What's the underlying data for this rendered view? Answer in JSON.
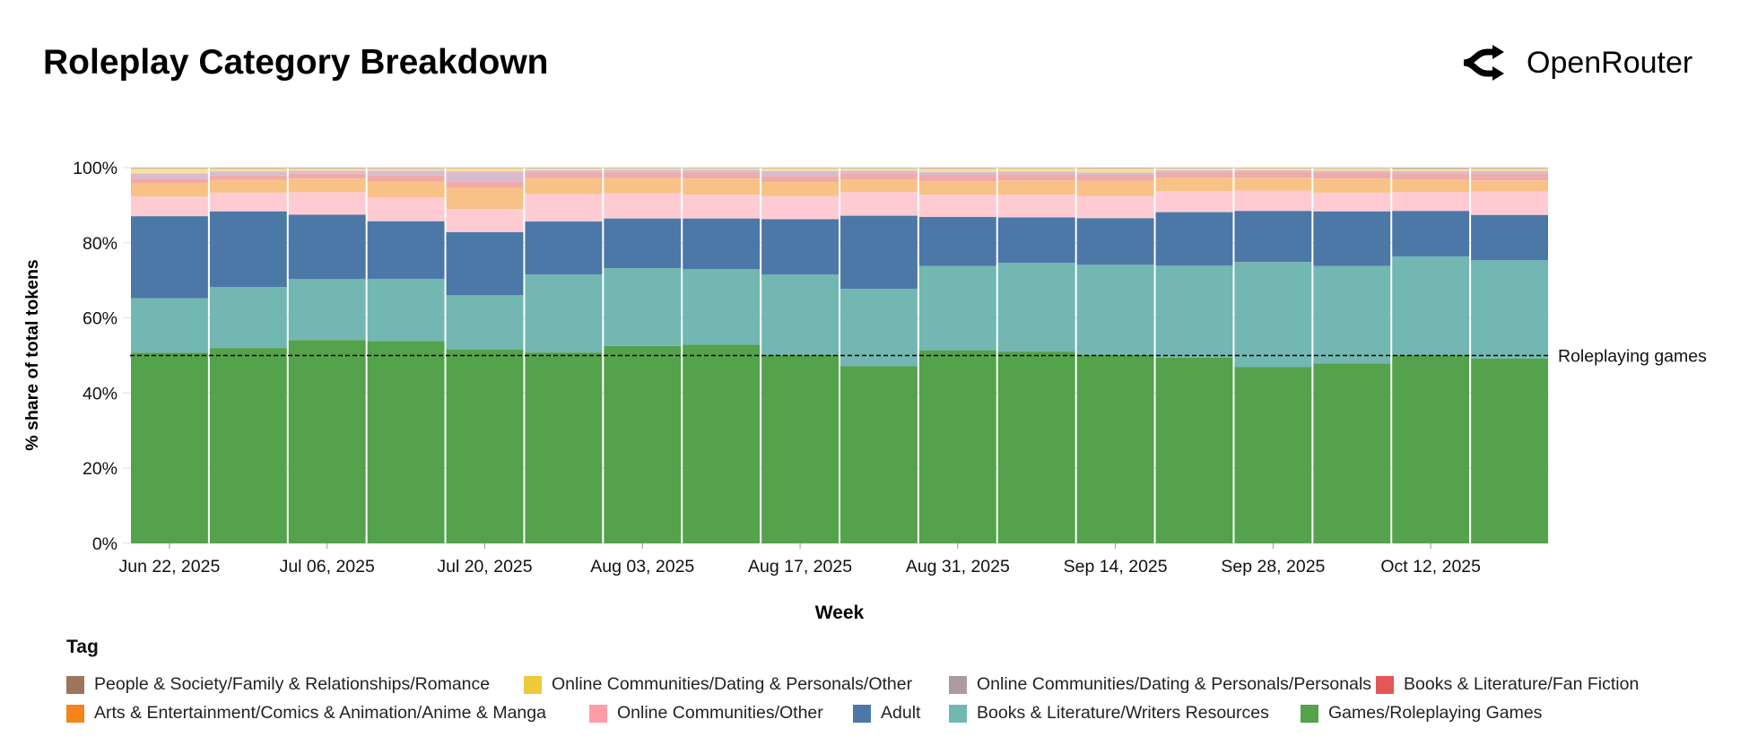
{
  "title": "Roleplay Category Breakdown",
  "brand": {
    "name": "OpenRouter",
    "icon": "openrouter-logo-icon"
  },
  "legend": {
    "title": "Tag",
    "items": [
      {
        "label": "People & Society/Family & Relationships/Romance",
        "color": "#9d755d"
      },
      {
        "label": "Online Communities/Dating & Personals/Other",
        "color": "#eeca3b"
      },
      {
        "label": "Online Communities/Dating & Personals/Personals",
        "color": "#ab9aa3"
      },
      {
        "label": "Books & Literature/Fan Fiction",
        "color": "#e45756"
      },
      {
        "label": "Arts & Entertainment/Comics & Animation/Anime & Manga",
        "color": "#f58518"
      },
      {
        "label": "Online Communities/Other",
        "color": "#ff9da6"
      },
      {
        "label": "Adult",
        "color": "#4c78a8"
      },
      {
        "label": "Books & Literature/Writers Resources",
        "color": "#72b7b2"
      },
      {
        "label": "Games/Roleplaying Games",
        "color": "#54a24b"
      }
    ]
  },
  "chart_data": {
    "type": "bar",
    "stacked": true,
    "normalized": true,
    "xlabel": "Week",
    "ylabel": "% share of total tokens",
    "ylim": [
      0,
      100
    ],
    "yticks": [
      "0%",
      "20%",
      "40%",
      "60%",
      "80%",
      "100%"
    ],
    "xtick_labels": [
      "Jun 22, 2025",
      "Jul 06, 2025",
      "Jul 20, 2025",
      "Aug 03, 2025",
      "Aug 17, 2025",
      "Aug 31, 2025",
      "Sep 14, 2025",
      "Sep 28, 2025",
      "Oct 12, 2025"
    ],
    "categories": [
      "Jun 22, 2025",
      "Jun 29, 2025",
      "Jul 06, 2025",
      "Jul 13, 2025",
      "Jul 20, 2025",
      "Jul 27, 2025",
      "Aug 03, 2025",
      "Aug 10, 2025",
      "Aug 17, 2025",
      "Aug 24, 2025",
      "Aug 31, 2025",
      "Sep 07, 2025",
      "Sep 14, 2025",
      "Sep 21, 2025",
      "Sep 28, 2025",
      "Oct 05, 2025",
      "Oct 12, 2025",
      "Oct 19, 2025"
    ],
    "series": [
      {
        "name": "Games/Roleplaying Games",
        "color": "#54a24b",
        "values": [
          50.7,
          51.9,
          54.0,
          53.7,
          51.6,
          50.7,
          52.5,
          52.8,
          50.1,
          47.2,
          51.3,
          51.0,
          50.1,
          49.3,
          46.9,
          47.8,
          50.1,
          49.3
        ]
      },
      {
        "name": "Books & Literature/Writers Resources",
        "color": "#72b7b2",
        "values": [
          14.5,
          16.2,
          16.2,
          16.5,
          14.5,
          20.7,
          20.7,
          20.1,
          21.3,
          20.6,
          22.4,
          23.6,
          23.9,
          24.4,
          28.0,
          25.9,
          26.3,
          26.2
        ]
      },
      {
        "name": "Adult",
        "color": "#4c78a8",
        "values": [
          21.8,
          20.1,
          17.1,
          15.3,
          16.8,
          14.1,
          13.2,
          13.5,
          14.7,
          19.5,
          13.0,
          12.1,
          12.4,
          14.2,
          13.6,
          14.5,
          12.1,
          12.1
        ]
      },
      {
        "name": "Online Communities/Other",
        "color": "#ffcbd3",
        "values": [
          5.2,
          5.0,
          6.0,
          6.3,
          6.2,
          7.3,
          6.7,
          6.3,
          6.1,
          6.3,
          5.9,
          6.0,
          5.9,
          5.6,
          5.4,
          5.0,
          5.0,
          6.2
        ]
      },
      {
        "name": "Arts & Entertainment/Comics & Animation/Anime & Manga",
        "color": "#f8c287",
        "values": [
          3.5,
          3.3,
          3.6,
          4.2,
          5.6,
          4.2,
          4.0,
          4.3,
          3.8,
          3.3,
          3.6,
          3.8,
          4.0,
          3.5,
          3.4,
          3.7,
          3.3,
          3.0
        ]
      },
      {
        "name": "Books & Literature/Fan Fiction",
        "color": "#f0aaa9",
        "values": [
          1.3,
          1.2,
          1.3,
          1.6,
          1.6,
          1.5,
          1.5,
          1.6,
          1.6,
          1.7,
          1.7,
          1.7,
          1.6,
          1.4,
          1.5,
          1.6,
          1.7,
          1.7
        ]
      },
      {
        "name": "Online Communities/Dating & Personals/Personals",
        "color": "#d8bbd0",
        "values": [
          1.4,
          1.1,
          0.8,
          1.3,
          2.8,
          0.6,
          0.7,
          0.7,
          1.3,
          0.7,
          0.7,
          0.7,
          0.6,
          0.6,
          0.5,
          0.5,
          0.6,
          0.8
        ]
      },
      {
        "name": "Online Communities/Dating & Personals/Other",
        "color": "#f6e09a",
        "values": [
          1.2,
          0.7,
          0.5,
          0.5,
          0.8,
          0.5,
          0.4,
          0.4,
          0.7,
          0.6,
          0.9,
          0.8,
          1.0,
          0.5,
          0.5,
          0.6,
          0.5,
          0.6
        ]
      },
      {
        "name": "People & Society/Family & Relationships/Romance",
        "color": "#c8b6a8",
        "values": [
          0.3,
          0.3,
          0.3,
          0.3,
          0.2,
          0.2,
          0.2,
          0.2,
          0.2,
          0.2,
          0.3,
          0.2,
          0.3,
          0.2,
          0.2,
          0.2,
          0.4,
          0.3
        ]
      }
    ],
    "reference_line": {
      "value": 50,
      "label": "Roleplaying games",
      "style": "dashed"
    },
    "grid": true,
    "legend_position": "bottom"
  }
}
